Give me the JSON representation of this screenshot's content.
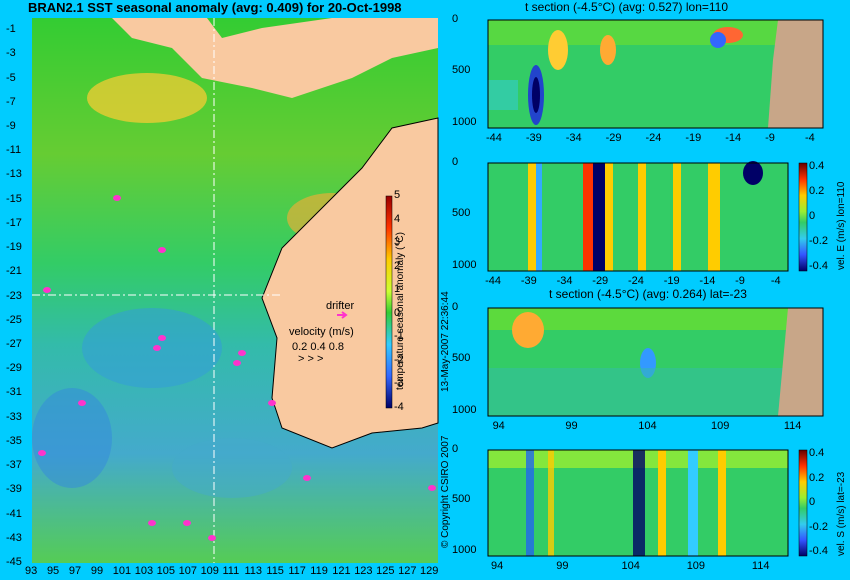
{
  "chart_data": [
    {
      "type": "heatmap",
      "title": "BRAN2.1 SST seasonal anomaly (avg: 0.409) for 20-Oct-1998",
      "x_ticks": [
        "93",
        "95",
        "97",
        "99",
        "101",
        "103",
        "105",
        "107",
        "109",
        "111",
        "113",
        "115",
        "117",
        "119",
        "121",
        "123",
        "125",
        "127",
        "129"
      ],
      "y_ticks": [
        "-1",
        "-3",
        "-5",
        "-7",
        "-9",
        "-11",
        "-13",
        "-15",
        "-17",
        "-19",
        "-21",
        "-23",
        "-25",
        "-27",
        "-29",
        "-31",
        "-33",
        "-35",
        "-37",
        "-39",
        "-41",
        "-43",
        "-45"
      ],
      "xlim": [
        93,
        130
      ],
      "ylim": [
        -45,
        0
      ],
      "colorbar": {
        "label": "temperature seasonal anomaly (°C)",
        "ticks": [
          "5",
          "4",
          "3",
          "2",
          "1",
          "0",
          "-1",
          "-2",
          "-3",
          "-4"
        ]
      },
      "annotations": {
        "drifter": "drifter",
        "velocity_label": "velocity (m/s)",
        "velocity_values": "0.2  0.4  0.8",
        "velocity_arrows": ">  >  >"
      },
      "section_lines": {
        "lon": 110,
        "lat": -23
      }
    },
    {
      "type": "heatmap",
      "title": "t section (-4.5°C) (avg: 0.527) lon=110",
      "x_ticks": [
        "-44",
        "-39",
        "-34",
        "-29",
        "-24",
        "-19",
        "-14",
        "-9",
        "-4"
      ],
      "y_ticks": [
        "0",
        "500",
        "1000"
      ],
      "xlim": [
        -45,
        -3
      ],
      "ylim": [
        1050,
        0
      ]
    },
    {
      "type": "heatmap",
      "x_ticks": [
        "-44",
        "-39",
        "-34",
        "-29",
        "-24",
        "-19",
        "-14",
        "-9",
        "-4"
      ],
      "y_ticks": [
        "0",
        "500",
        "1000"
      ],
      "xlim": [
        -45,
        -3
      ],
      "ylim": [
        1050,
        0
      ],
      "colorbar": {
        "label": "vel. E (m/s) lon=110",
        "ticks": [
          "0.4",
          "0.2",
          "0",
          "-0.2",
          "-0.4"
        ]
      }
    },
    {
      "type": "heatmap",
      "title": "t section (-4.5°C) (avg: 0.264) lat=-23",
      "x_ticks": [
        "94",
        "99",
        "104",
        "109",
        "114"
      ],
      "y_ticks": [
        "0",
        "500",
        "1000"
      ],
      "xlim": [
        93,
        116
      ],
      "ylim": [
        1050,
        0
      ]
    },
    {
      "type": "heatmap",
      "x_ticks": [
        "94",
        "99",
        "104",
        "109",
        "114"
      ],
      "y_ticks": [
        "0",
        "500",
        "1000"
      ],
      "xlim": [
        93,
        116
      ],
      "ylim": [
        1050,
        0
      ],
      "colorbar": {
        "label": "vel. S (m/s) lat=-23",
        "ticks": [
          "0.4",
          "0.2",
          "0",
          "-0.2",
          "-0.4"
        ]
      }
    }
  ],
  "watermark": {
    "copyright": "© Copyright CSIRO 2007",
    "timestamp": "13-May-2007 22:36:44"
  },
  "colors": {
    "background": "#00ccff",
    "land": "#f9c9a0",
    "section_land": "#c8a688",
    "drifter": "#ff33cc"
  }
}
